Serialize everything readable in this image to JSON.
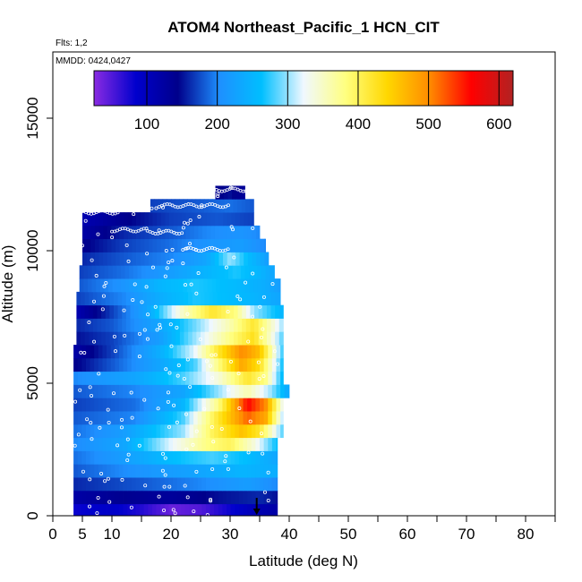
{
  "chart_data": {
    "type": "heatmap",
    "title": "ATOM4 Northeast_Pacific_1 HCN_CIT",
    "flights_label": "Flts: 1,2",
    "dates_label": "MMDD: 0424,0427",
    "xlabel": "Latitude (deg N)",
    "ylabel": "Altitude (m)",
    "xlim": [
      0,
      85
    ],
    "ylim": [
      0,
      17500
    ],
    "x_ticks": [
      0,
      5,
      10,
      20,
      30,
      40,
      50,
      60,
      70,
      80
    ],
    "x_minor_ticks": [
      15,
      25,
      35,
      45,
      55,
      65,
      75,
      85
    ],
    "y_ticks": [
      0,
      5000,
      10000,
      15000
    ],
    "colorbar": {
      "range": [
        25,
        620
      ],
      "ticks": [
        100,
        200,
        300,
        400,
        500,
        600
      ],
      "colors": [
        "#8a2be2",
        "#0000cd",
        "#00008b",
        "#1e90ff",
        "#00bfff",
        "#f0f8ff",
        "#ffff80",
        "#ffd700",
        "#ff8c00",
        "#ff0000",
        "#b22222"
      ]
    },
    "marker_x": 34.5,
    "layers": [
      {
        "alt": 200,
        "x0": 3.5,
        "x1": 38,
        "profile": [
          [
            3.5,
            80
          ],
          [
            10,
            90
          ],
          [
            15,
            70
          ],
          [
            20,
            40
          ],
          [
            25,
            50
          ],
          [
            30,
            80
          ],
          [
            35,
            110
          ],
          [
            38,
            120
          ]
        ]
      },
      {
        "alt": 700,
        "x0": 3.5,
        "x1": 38,
        "profile": [
          [
            3.5,
            120
          ],
          [
            12,
            140
          ],
          [
            20,
            130
          ],
          [
            28,
            150
          ],
          [
            35,
            160
          ],
          [
            38,
            150
          ]
        ]
      },
      {
        "alt": 1200,
        "x0": 3.5,
        "x1": 38,
        "profile": [
          [
            3.5,
            160
          ],
          [
            15,
            180
          ],
          [
            25,
            200
          ],
          [
            33,
            220
          ],
          [
            38,
            200
          ]
        ]
      },
      {
        "alt": 1700,
        "x0": 3.5,
        "x1": 38,
        "profile": [
          [
            3.5,
            180
          ],
          [
            15,
            210
          ],
          [
            25,
            230
          ],
          [
            32,
            250
          ],
          [
            38,
            240
          ]
        ]
      },
      {
        "alt": 2200,
        "x0": 3.5,
        "x1": 38,
        "profile": [
          [
            3.5,
            190
          ],
          [
            12,
            220
          ],
          [
            20,
            260
          ],
          [
            27,
            280
          ],
          [
            33,
            260
          ],
          [
            38,
            230
          ]
        ]
      },
      {
        "alt": 2700,
        "x0": 3.5,
        "x1": 38,
        "profile": [
          [
            3.5,
            200
          ],
          [
            12,
            230
          ],
          [
            20,
            320
          ],
          [
            26,
            380
          ],
          [
            30,
            400
          ],
          [
            34,
            340
          ],
          [
            38,
            260
          ]
        ]
      },
      {
        "alt": 3200,
        "x0": 3.5,
        "x1": 39,
        "profile": [
          [
            3.5,
            190
          ],
          [
            12,
            220
          ],
          [
            22,
            300
          ],
          [
            27,
            400
          ],
          [
            32,
            460
          ],
          [
            35,
            420
          ],
          [
            39,
            280
          ]
        ]
      },
      {
        "alt": 3700,
        "x0": 3.5,
        "x1": 39,
        "profile": [
          [
            3.5,
            180
          ],
          [
            14,
            200
          ],
          [
            22,
            280
          ],
          [
            28,
            420
          ],
          [
            33,
            520
          ],
          [
            36,
            480
          ],
          [
            39,
            300
          ]
        ]
      },
      {
        "alt": 4200,
        "x0": 3.5,
        "x1": 39,
        "profile": [
          [
            3.5,
            170
          ],
          [
            14,
            190
          ],
          [
            22,
            250
          ],
          [
            28,
            380
          ],
          [
            33,
            560
          ],
          [
            36,
            500
          ],
          [
            39,
            320
          ]
        ]
      },
      {
        "alt": 4700,
        "x0": 3.5,
        "x1": 40,
        "profile": [
          [
            3.5,
            180
          ],
          [
            14,
            200
          ],
          [
            22,
            230
          ],
          [
            28,
            300
          ],
          [
            33,
            360
          ],
          [
            37,
            300
          ],
          [
            40,
            230
          ]
        ]
      },
      {
        "alt": 5200,
        "x0": 3.5,
        "x1": 39,
        "profile": [
          [
            3.5,
            200
          ],
          [
            14,
            230
          ],
          [
            22,
            280
          ],
          [
            28,
            340
          ],
          [
            33,
            420
          ],
          [
            36,
            380
          ],
          [
            39,
            250
          ]
        ]
      },
      {
        "alt": 5700,
        "x0": 3.5,
        "x1": 39,
        "profile": [
          [
            3.5,
            140
          ],
          [
            10,
            180
          ],
          [
            18,
            230
          ],
          [
            24,
            280
          ],
          [
            28,
            380
          ],
          [
            32,
            480
          ],
          [
            35,
            430
          ],
          [
            39,
            260
          ]
        ]
      },
      {
        "alt": 6200,
        "x0": 3.5,
        "x1": 39,
        "profile": [
          [
            3.5,
            120
          ],
          [
            10,
            170
          ],
          [
            18,
            240
          ],
          [
            24,
            320
          ],
          [
            28,
            420
          ],
          [
            32,
            500
          ],
          [
            35,
            460
          ],
          [
            39,
            270
          ]
        ]
      },
      {
        "alt": 6700,
        "x0": 4,
        "x1": 39,
        "profile": [
          [
            4,
            150
          ],
          [
            10,
            170
          ],
          [
            18,
            220
          ],
          [
            24,
            300
          ],
          [
            30,
            380
          ],
          [
            34,
            430
          ],
          [
            39,
            280
          ]
        ]
      },
      {
        "alt": 7200,
        "x0": 4,
        "x1": 39,
        "profile": [
          [
            4,
            160
          ],
          [
            10,
            180
          ],
          [
            18,
            230
          ],
          [
            24,
            290
          ],
          [
            30,
            360
          ],
          [
            34,
            420
          ],
          [
            39,
            300
          ]
        ]
      },
      {
        "alt": 7700,
        "x0": 4,
        "x1": 39,
        "profile": [
          [
            4,
            110
          ],
          [
            10,
            170
          ],
          [
            16,
            230
          ],
          [
            22,
            350
          ],
          [
            27,
            420
          ],
          [
            31,
            380
          ],
          [
            34,
            300
          ],
          [
            39,
            250
          ]
        ]
      },
      {
        "alt": 8200,
        "x0": 4,
        "x1": 38.5,
        "profile": [
          [
            4,
            170
          ],
          [
            12,
            200
          ],
          [
            18,
            240
          ],
          [
            24,
            270
          ],
          [
            30,
            260
          ],
          [
            34,
            250
          ],
          [
            38.5,
            230
          ]
        ]
      },
      {
        "alt": 8700,
        "x0": 4.5,
        "x1": 38.5,
        "profile": [
          [
            4.5,
            180
          ],
          [
            12,
            210
          ],
          [
            18,
            250
          ],
          [
            24,
            270
          ],
          [
            30,
            260
          ],
          [
            36,
            240
          ],
          [
            38.5,
            220
          ]
        ]
      },
      {
        "alt": 9200,
        "x0": 4.5,
        "x1": 37.5,
        "profile": [
          [
            4.5,
            170
          ],
          [
            12,
            190
          ],
          [
            20,
            220
          ],
          [
            26,
            250
          ],
          [
            31,
            270
          ],
          [
            35,
            250
          ],
          [
            37.5,
            230
          ]
        ]
      },
      {
        "alt": 9700,
        "x0": 5,
        "x1": 36.5,
        "profile": [
          [
            5,
            160
          ],
          [
            12,
            180
          ],
          [
            20,
            200
          ],
          [
            26,
            230
          ],
          [
            30,
            300
          ],
          [
            33,
            260
          ],
          [
            36.5,
            220
          ]
        ]
      },
      {
        "alt": 10200,
        "x0": 5,
        "x1": 36,
        "profile": [
          [
            5,
            140
          ],
          [
            12,
            170
          ],
          [
            20,
            190
          ],
          [
            26,
            210
          ],
          [
            32,
            220
          ],
          [
            36,
            200
          ]
        ]
      },
      {
        "alt": 10700,
        "x0": 5,
        "x1": 35,
        "profile": [
          [
            5,
            120
          ],
          [
            12,
            160
          ],
          [
            20,
            180
          ],
          [
            26,
            200
          ],
          [
            32,
            210
          ],
          [
            35,
            200
          ]
        ]
      },
      {
        "alt": 11200,
        "x0": 5,
        "x1": 34,
        "profile": [
          [
            5,
            110
          ],
          [
            12,
            140
          ],
          [
            20,
            170
          ],
          [
            28,
            180
          ],
          [
            34,
            170
          ]
        ]
      },
      {
        "alt": 11700,
        "x0": 16.5,
        "x1": 34,
        "profile": [
          [
            16.5,
            170
          ],
          [
            24,
            180
          ],
          [
            30,
            190
          ],
          [
            34,
            180
          ]
        ]
      },
      {
        "alt": 12200,
        "x0": 27.5,
        "x1": 32.5,
        "profile": [
          [
            27.5,
            140
          ],
          [
            30,
            150
          ],
          [
            32.5,
            130
          ]
        ]
      }
    ]
  }
}
